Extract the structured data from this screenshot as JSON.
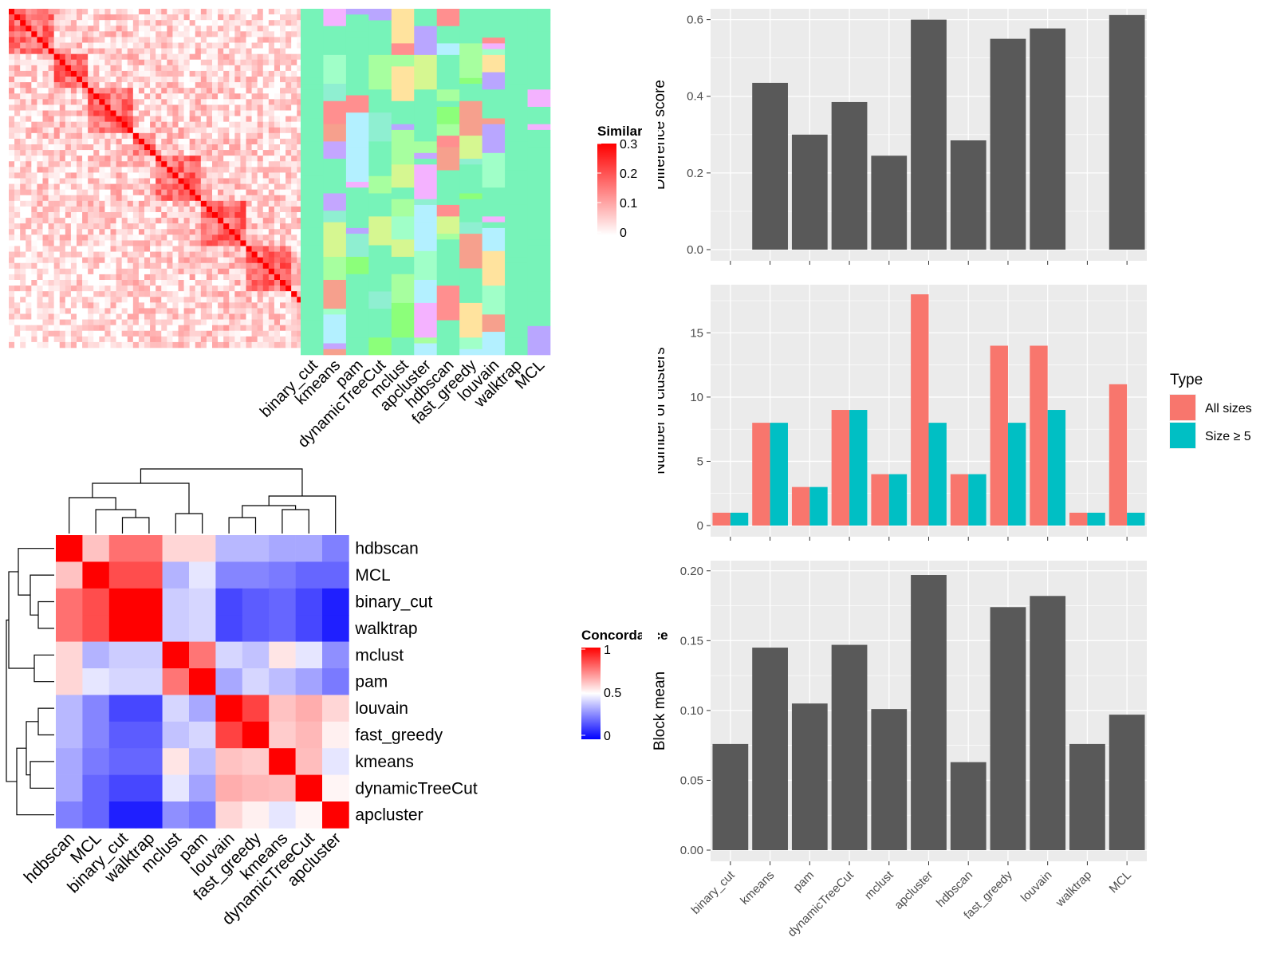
{
  "algorithms": [
    "binary_cut",
    "kmeans",
    "pam",
    "dynamicTreeCut",
    "mclust",
    "apcluster",
    "hdbscan",
    "fast_greedy",
    "louvain",
    "walktrap",
    "MCL"
  ],
  "similarity_heatmap": {
    "legend_title": "Similarity",
    "legend_ticks": [
      "0.3",
      "0.2",
      "0.1",
      "0"
    ],
    "low_color": "#ffffff",
    "high_color": "#ff0000"
  },
  "membership_heatmap": {
    "columns": [
      "binary_cut",
      "kmeans",
      "pam",
      "dynamicTreeCut",
      "mclust",
      "apcluster",
      "hdbscan",
      "fast_greedy",
      "louvain",
      "walktrap",
      "MCL"
    ],
    "background_color": "#77f3b9"
  },
  "concordance": {
    "legend_title": "Concordance",
    "legend_ticks": [
      "1",
      "0.5",
      "0"
    ],
    "low_color": "#0000ff",
    "mid_color": "#ffffff",
    "high_color": "#ff0000",
    "order": [
      "hdbscan",
      "MCL",
      "binary_cut",
      "walktrap",
      "mclust",
      "pam",
      "louvain",
      "fast_greedy",
      "kmeans",
      "dynamicTreeCut",
      "apcluster"
    ],
    "matrix": [
      [
        1.0,
        0.62,
        0.78,
        0.78,
        0.58,
        0.58,
        0.36,
        0.36,
        0.33,
        0.33,
        0.25
      ],
      [
        0.62,
        1.0,
        0.85,
        0.85,
        0.35,
        0.45,
        0.26,
        0.26,
        0.24,
        0.2,
        0.2
      ],
      [
        0.78,
        0.85,
        1.0,
        1.0,
        0.4,
        0.42,
        0.14,
        0.18,
        0.2,
        0.14,
        0.06
      ],
      [
        0.78,
        0.85,
        1.0,
        1.0,
        0.4,
        0.42,
        0.14,
        0.18,
        0.2,
        0.14,
        0.06
      ],
      [
        0.58,
        0.35,
        0.4,
        0.4,
        1.0,
        0.77,
        0.42,
        0.38,
        0.55,
        0.45,
        0.28
      ],
      [
        0.58,
        0.45,
        0.42,
        0.42,
        0.77,
        1.0,
        0.33,
        0.42,
        0.37,
        0.32,
        0.24
      ],
      [
        0.36,
        0.26,
        0.14,
        0.14,
        0.42,
        0.33,
        1.0,
        0.87,
        0.62,
        0.66,
        0.58
      ],
      [
        0.36,
        0.26,
        0.18,
        0.18,
        0.38,
        0.42,
        0.87,
        1.0,
        0.6,
        0.64,
        0.53
      ],
      [
        0.33,
        0.24,
        0.2,
        0.2,
        0.55,
        0.37,
        0.62,
        0.6,
        1.0,
        0.63,
        0.45
      ],
      [
        0.33,
        0.2,
        0.14,
        0.14,
        0.45,
        0.32,
        0.66,
        0.64,
        0.63,
        1.0,
        0.52
      ],
      [
        0.25,
        0.2,
        0.06,
        0.06,
        0.28,
        0.24,
        0.58,
        0.53,
        0.45,
        0.52,
        1.0
      ]
    ]
  },
  "chart_data": [
    {
      "type": "bar",
      "categories": [
        "binary_cut",
        "kmeans",
        "pam",
        "dynamicTreeCut",
        "mclust",
        "apcluster",
        "hdbscan",
        "fast_greedy",
        "louvain",
        "walktrap",
        "MCL"
      ],
      "values": [
        0,
        0.435,
        0.3,
        0.385,
        0.245,
        0.6,
        0.285,
        0.55,
        0.577,
        0,
        0.612
      ],
      "xlabel": "",
      "ylabel": "Difference score",
      "ylim": [
        0,
        0.62
      ],
      "yticks": [
        0.0,
        0.2,
        0.4,
        0.6
      ],
      "ytick_labels": [
        "0.0",
        "0.2",
        "0.4",
        "0.6"
      ],
      "show_xtick_labels": false,
      "grid": true,
      "bar_color": "#595959",
      "panel_color": "#ebebeb"
    },
    {
      "type": "bar",
      "categories": [
        "binary_cut",
        "kmeans",
        "pam",
        "dynamicTreeCut",
        "mclust",
        "apcluster",
        "hdbscan",
        "fast_greedy",
        "louvain",
        "walktrap",
        "MCL"
      ],
      "series": [
        {
          "name": "All sizes",
          "color": "#f8766d",
          "values": [
            1,
            8,
            3,
            9,
            4,
            18,
            4,
            14,
            14,
            1,
            11
          ]
        },
        {
          "name": "Size ≥ 5",
          "color": "#00bfc4",
          "values": [
            1,
            8,
            3,
            9,
            4,
            8,
            4,
            8,
            9,
            1,
            1
          ]
        }
      ],
      "xlabel": "",
      "ylabel": "Number of clusters",
      "ylim": [
        0,
        18.5
      ],
      "yticks": [
        0,
        5,
        10,
        15
      ],
      "ytick_labels": [
        "0",
        "5",
        "10",
        "15"
      ],
      "show_xtick_labels": false,
      "grid": true,
      "legend_title": "Type",
      "legend_position": "right",
      "panel_color": "#ebebeb"
    },
    {
      "type": "bar",
      "categories": [
        "binary_cut",
        "kmeans",
        "pam",
        "dynamicTreeCut",
        "mclust",
        "apcluster",
        "hdbscan",
        "fast_greedy",
        "louvain",
        "walktrap",
        "MCL"
      ],
      "values": [
        0.076,
        0.145,
        0.105,
        0.147,
        0.101,
        0.197,
        0.063,
        0.174,
        0.182,
        0.076,
        0.097
      ],
      "xlabel": "",
      "ylabel": "Block mean",
      "ylim": [
        0,
        0.205
      ],
      "yticks": [
        0.0,
        0.05,
        0.1,
        0.15,
        0.2
      ],
      "ytick_labels": [
        "0.00",
        "0.05",
        "0.10",
        "0.15",
        "0.20"
      ],
      "show_xtick_labels": true,
      "grid": true,
      "bar_color": "#595959",
      "panel_color": "#ebebeb"
    }
  ]
}
